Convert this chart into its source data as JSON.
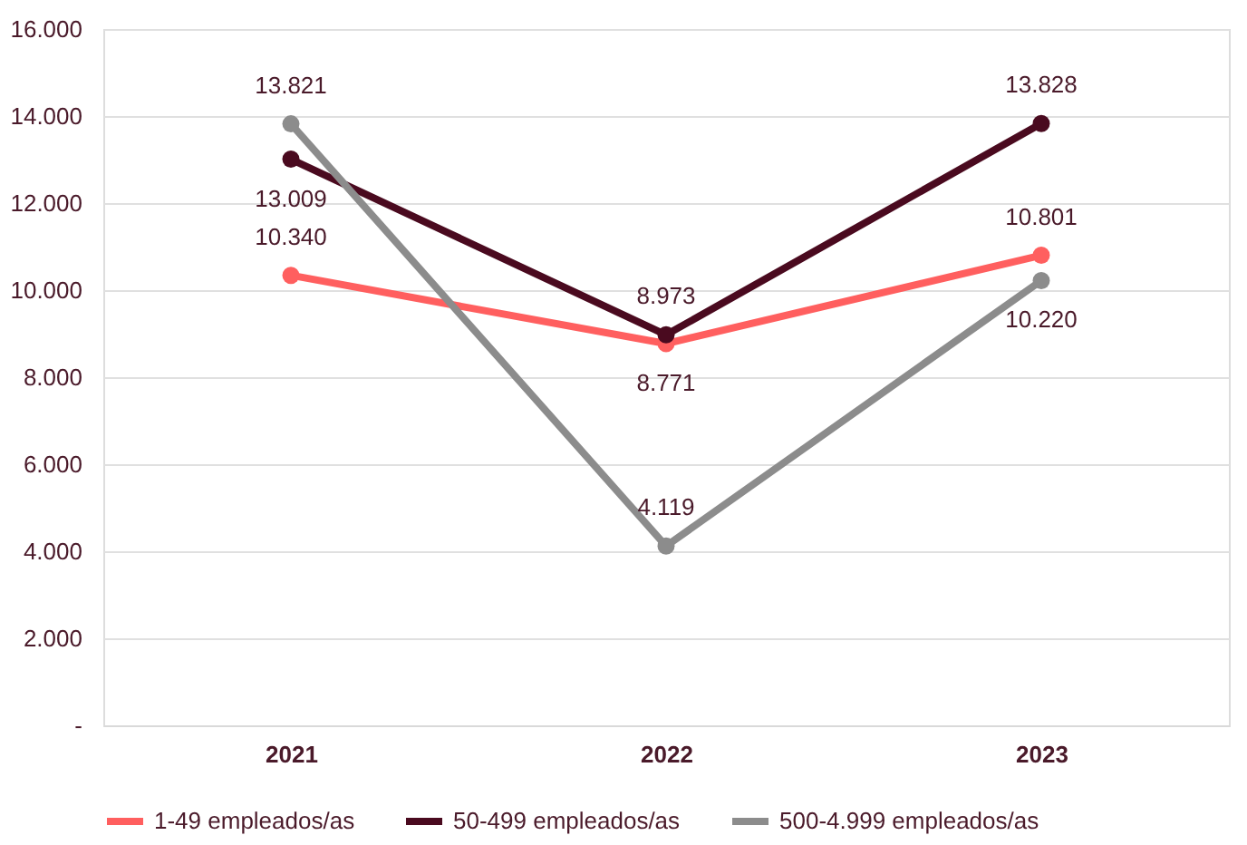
{
  "chart_data": {
    "type": "line",
    "categories": [
      "2021",
      "2022",
      "2023"
    ],
    "series": [
      {
        "name": "1-49 empleados/as",
        "color": "#ff5f5f",
        "values": [
          10340,
          8771,
          10801
        ],
        "value_labels": [
          "10.340",
          "8.771",
          "10.801"
        ]
      },
      {
        "name": "50-499 empleados/as",
        "color": "#4a0a1f",
        "values": [
          13009,
          8973,
          13828
        ],
        "value_labels": [
          "13.009",
          "8.973",
          "13.828"
        ]
      },
      {
        "name": "500-4.999 empleados/as",
        "color": "#8c8c8c",
        "values": [
          13821,
          4119,
          10220
        ],
        "value_labels": [
          "13.821",
          "4.119",
          "10.220"
        ]
      }
    ],
    "ylim": [
      0,
      16000
    ],
    "yticks": [
      {
        "value": 0,
        "label": "-"
      },
      {
        "value": 2000,
        "label": "2.000"
      },
      {
        "value": 4000,
        "label": "4.000"
      },
      {
        "value": 6000,
        "label": "6.000"
      },
      {
        "value": 8000,
        "label": "8.000"
      },
      {
        "value": 10000,
        "label": "10.000"
      },
      {
        "value": 12000,
        "label": "12.000"
      },
      {
        "value": 14000,
        "label": "14.000"
      },
      {
        "value": 16000,
        "label": "16.000"
      }
    ],
    "grid": "y",
    "legend": "bottom",
    "marker": "circle",
    "line_style": "solid"
  }
}
